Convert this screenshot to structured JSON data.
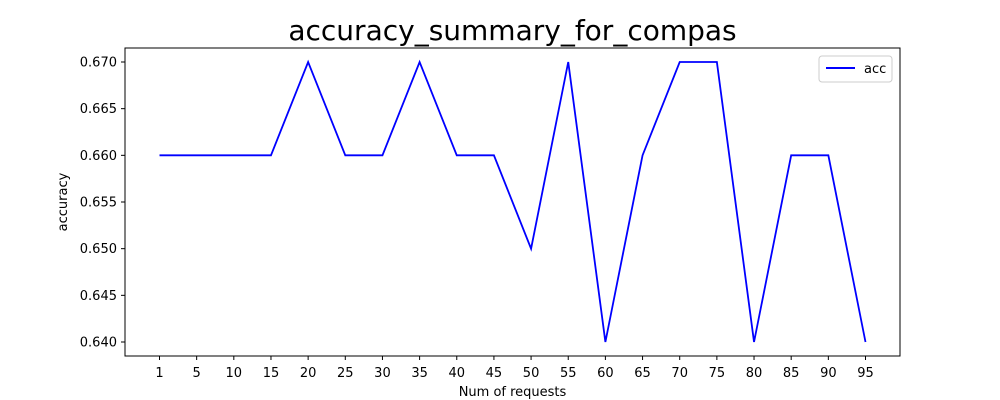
{
  "chart_data": {
    "type": "line",
    "title": "accuracy_summary_for_compas",
    "xlabel": "Num of requests",
    "ylabel": "accuracy",
    "x": [
      1,
      5,
      10,
      15,
      20,
      25,
      30,
      35,
      40,
      45,
      50,
      55,
      60,
      65,
      70,
      75,
      80,
      85,
      90,
      95
    ],
    "x_ticks": [
      "1",
      "5",
      "10",
      "15",
      "20",
      "25",
      "30",
      "35",
      "40",
      "45",
      "50",
      "55",
      "60",
      "65",
      "70",
      "75",
      "80",
      "85",
      "90",
      "95"
    ],
    "y_ticks": [
      "0.640",
      "0.645",
      "0.650",
      "0.655",
      "0.660",
      "0.665",
      "0.670"
    ],
    "y_tick_values": [
      0.64,
      0.645,
      0.65,
      0.655,
      0.66,
      0.665,
      0.67
    ],
    "ylim": [
      0.6385,
      0.6715
    ],
    "series": [
      {
        "name": "acc",
        "color": "#0000ff",
        "values": [
          0.66,
          0.66,
          0.66,
          0.66,
          0.67,
          0.66,
          0.66,
          0.67,
          0.66,
          0.66,
          0.65,
          0.67,
          0.64,
          0.66,
          0.67,
          0.67,
          0.64,
          0.66,
          0.66,
          0.64
        ]
      }
    ],
    "legend": {
      "position": "top-right"
    },
    "grid": false
  }
}
